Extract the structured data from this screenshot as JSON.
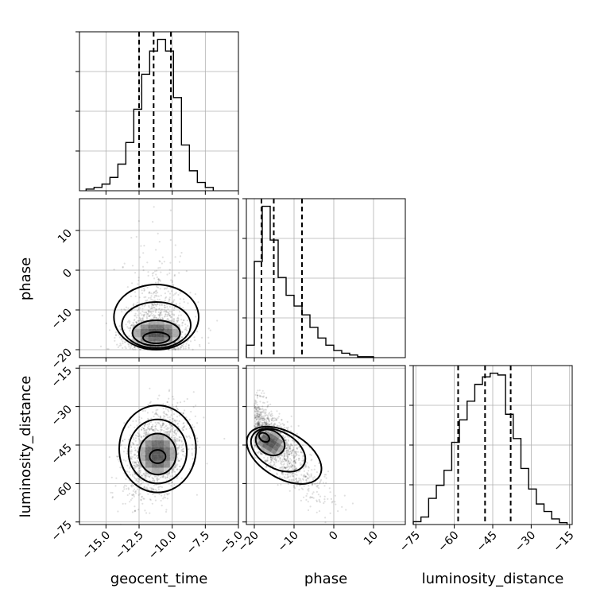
{
  "chart_data": {
    "type": "corner",
    "parameters": [
      "geocent_time",
      "phase",
      "luminosity_distance"
    ],
    "ranges": {
      "geocent_time": [
        -17.0,
        -5.0
      ],
      "phase": [
        -22.0,
        18.0
      ],
      "luminosity_distance": [
        -76.0,
        -14.0
      ]
    },
    "ticks": {
      "geocent_time": [
        -15.0,
        -12.5,
        -10.0,
        -7.5,
        -5.0
      ],
      "phase": [
        -20,
        -10,
        0,
        10
      ],
      "luminosity_distance": [
        -75,
        -60,
        -45,
        -30,
        -15
      ]
    },
    "tick_labels": {
      "geocent_time": [
        "−15.0",
        "−12.5",
        "−10.0",
        "−7.5",
        "−5.0"
      ],
      "phase": [
        "−20",
        "−10",
        "0",
        "10"
      ],
      "luminosity_distance": [
        "−75",
        "−60",
        "−45",
        "−30",
        "−15"
      ]
    },
    "histograms": {
      "geocent_time": {
        "edges": [
          -16.5,
          -15.9,
          -15.3,
          -14.7,
          -14.1,
          -13.5,
          -12.9,
          -12.3,
          -11.7,
          -11.1,
          -10.5,
          -9.9,
          -9.3,
          -8.7,
          -8.1,
          -7.5,
          -6.9
        ],
        "counts": [
          2,
          4,
          8,
          16,
          32,
          58,
          98,
          140,
          168,
          182,
          168,
          112,
          55,
          24,
          10,
          4
        ]
      },
      "phase": {
        "edges": [
          -22,
          -20,
          -18,
          -16,
          -14,
          -12,
          -10,
          -8,
          -6,
          -4,
          -2,
          0,
          2,
          4,
          6,
          8,
          10
        ],
        "counts": [
          14,
          108,
          170,
          132,
          90,
          70,
          58,
          48,
          34,
          22,
          14,
          8,
          5,
          3,
          1,
          1
        ]
      },
      "luminosity_distance": {
        "edges": [
          -76,
          -73,
          -70,
          -67,
          -64,
          -61,
          -58,
          -55,
          -52,
          -49,
          -46,
          -43,
          -40,
          -37,
          -34,
          -31,
          -28,
          -25,
          -22,
          -19,
          -16
        ],
        "counts": [
          3,
          8,
          28,
          42,
          58,
          88,
          112,
          132,
          150,
          158,
          162,
          160,
          118,
          92,
          60,
          38,
          22,
          14,
          6,
          2
        ]
      }
    },
    "quantiles": {
      "geocent_time": [
        -12.5,
        -11.4,
        -10.1
      ],
      "phase": [
        -18.2,
        -15.1,
        -8.0
      ],
      "luminosity_distance": [
        -58.5,
        -48.0,
        -38.0
      ]
    },
    "grid": true,
    "color": "#000000"
  }
}
